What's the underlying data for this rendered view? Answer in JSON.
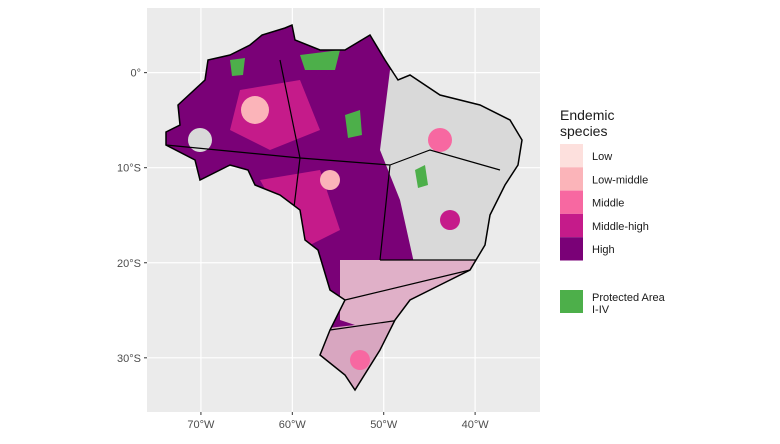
{
  "map": {
    "x_axis": {
      "lim": [
        -75.9,
        -32.9
      ],
      "ticks": [
        {
          "value": -70,
          "label": "70°W"
        },
        {
          "value": -60,
          "label": "60°W"
        },
        {
          "value": -50,
          "label": "50°W"
        },
        {
          "value": -40,
          "label": "40°W"
        }
      ]
    },
    "y_axis": {
      "lim": [
        -35.7,
        6.8
      ],
      "ticks": [
        {
          "value": 0,
          "label": "0°"
        },
        {
          "value": -10,
          "label": "10°S"
        },
        {
          "value": -20,
          "label": "20°S"
        },
        {
          "value": -30,
          "label": "30°S"
        }
      ]
    },
    "legend": {
      "title_lines": [
        "Endemic",
        "species"
      ],
      "items": [
        {
          "label": "Low",
          "color": "#fde0dd"
        },
        {
          "label": "Low-middle",
          "color": "#fbb4b9"
        },
        {
          "label": "Middle",
          "color": "#f768a1"
        },
        {
          "label": "Middle-high",
          "color": "#c51b8a"
        },
        {
          "label": "High",
          "color": "#7a0177"
        }
      ],
      "protected": {
        "label_lines": [
          "Protected Area",
          "I-IV"
        ],
        "color": "#4daf4a"
      }
    }
  }
}
